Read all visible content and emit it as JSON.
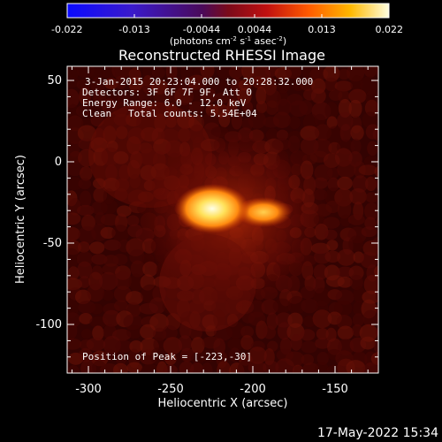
{
  "colorbar": {
    "tick_labels": [
      "-0.022",
      "-0.013",
      "-0.0044",
      "0.0044",
      "0.013",
      "0.022"
    ],
    "unit_main": "(photons cm",
    "unit_exp1": "-2",
    "unit_mid": " s",
    "unit_exp2": "-1",
    "unit_tail": " asec",
    "unit_exp3": "-2",
    "unit_close": ")"
  },
  "title": "Reconstructed RHESSI Image",
  "info": {
    "time_range": "3-Jan-2015 20:23:04.000 to 20:28:32.000",
    "detectors": "Detectors: 3F 6F 7F 9F, Att 0",
    "energy": "Energy Range: 6.0 - 12.0 keV",
    "method": "Clean",
    "total_counts": "Total counts: 5.54E+04",
    "peak": "Position of Peak = [-223,-30]"
  },
  "axes": {
    "xlabel": "Heliocentric X (arcsec)",
    "ylabel": "Heliocentric Y (arcsec)",
    "x_ticks": [
      "-300",
      "-250",
      "-200",
      "-150"
    ],
    "y_ticks": [
      "50",
      "0",
      "-50",
      "-100"
    ]
  },
  "timestamp": "17-May-2022 15:34",
  "colors": {
    "background": "#000000",
    "foreground": "#ffffff"
  }
}
